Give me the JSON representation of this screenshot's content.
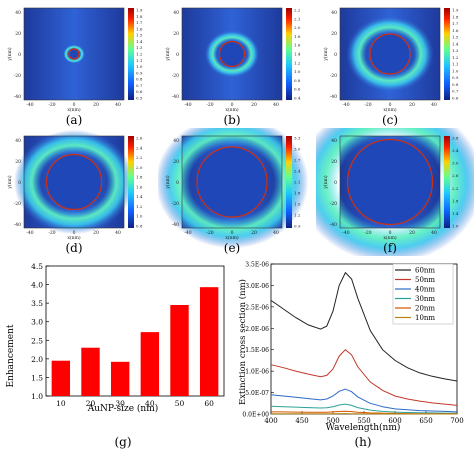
{
  "chart_data": [
    {
      "type": "heatmap",
      "panel": "(a)",
      "size_nm": 10,
      "xlabel": "x(nm)",
      "ylabel": "y(nm)",
      "xticks": [
        "-40",
        "-20",
        "0",
        "20",
        "40"
      ],
      "yticks": [
        "40",
        "20",
        "0",
        "-20",
        "-40"
      ],
      "colorbar": [
        "1.9",
        "1.8",
        "1.7",
        "1.6",
        "1.5",
        "1.4",
        "1.3",
        "1.2",
        "1.1",
        "1.0",
        "0.9",
        "0.8",
        "0.7",
        "0.6",
        "0.5"
      ]
    },
    {
      "type": "heatmap",
      "panel": "(b)",
      "size_nm": 20,
      "xlabel": "x(nm)",
      "ylabel": "y(nm)",
      "xticks": [
        "-40",
        "-20",
        "0",
        "20",
        "40"
      ],
      "yticks": [
        "40",
        "20",
        "0",
        "-20",
        "-40"
      ],
      "colorbar": [
        "2.2",
        "2.1",
        "2.0",
        "1.8",
        "1.6",
        "1.4",
        "1.2",
        "1.0",
        "0.8",
        "0.6",
        "0.4"
      ]
    },
    {
      "type": "heatmap",
      "panel": "(c)",
      "size_nm": 30,
      "xlabel": "x(nm)",
      "ylabel": "y(nm)",
      "xticks": [
        "-40",
        "-20",
        "0",
        "20",
        "40"
      ],
      "yticks": [
        "40",
        "20",
        "0",
        "-20",
        "-40"
      ],
      "colorbar": [
        "1.9",
        "1.8",
        "1.7",
        "1.6",
        "1.5",
        "1.4",
        "1.3",
        "1.2",
        "1.1",
        "1.0",
        "0.9",
        "0.8",
        "0.7",
        "0.6"
      ]
    },
    {
      "type": "heatmap",
      "panel": "(d)",
      "size_nm": 40,
      "xlabel": "x(nm)",
      "ylabel": "y(nm)",
      "xticks": [
        "-40",
        "-20",
        "0",
        "20",
        "40"
      ],
      "yticks": [
        "40",
        "20",
        "0",
        "-20",
        "-40"
      ],
      "colorbar": [
        "2.6",
        "2.4",
        "2.2",
        "2.0",
        "1.8",
        "1.6",
        "1.4",
        "1.2",
        "1.0",
        "0.8"
      ]
    },
    {
      "type": "heatmap",
      "panel": "(e)",
      "size_nm": 50,
      "xlabel": "x(nm)",
      "ylabel": "y(nm)",
      "xticks": [
        "-40",
        "-20",
        "0",
        "20",
        "40"
      ],
      "yticks": [
        "40",
        "20",
        "0",
        "-20",
        "-40"
      ],
      "colorbar": [
        "3.3",
        "3.0",
        "2.7",
        "2.4",
        "2.1",
        "1.8",
        "1.5",
        "1.2",
        "0.9"
      ]
    },
    {
      "type": "heatmap",
      "panel": "(f)",
      "size_nm": 60,
      "xlabel": "x(nm)",
      "ylabel": "y(nm)",
      "xticks": [
        "-40",
        "-20",
        "0",
        "20",
        "40"
      ],
      "yticks": [
        "40",
        "20",
        "0",
        "-20",
        "-40"
      ],
      "colorbar": [
        "3.8",
        "3.4",
        "3.0",
        "2.6",
        "2.2",
        "1.8",
        "1.4",
        "1.0"
      ]
    },
    {
      "type": "bar",
      "panel": "(g)",
      "categories": [
        "10",
        "20",
        "30",
        "40",
        "50",
        "60"
      ],
      "values": [
        1.95,
        2.3,
        1.92,
        2.72,
        3.45,
        3.93
      ],
      "xlabel": "AuNP-size (nm)",
      "ylabel": "Enhancement",
      "ylim": [
        1.0,
        4.5
      ],
      "yticks": [
        "1.0",
        "1.5",
        "2.0",
        "2.5",
        "3.0",
        "3.5",
        "4.0",
        "4.5"
      ],
      "color": "#ff0000"
    },
    {
      "type": "line",
      "panel": "(h)",
      "xlabel": "Wavelength(nm)",
      "ylabel": "Extinction cross section (nm)",
      "xlim": [
        400,
        700
      ],
      "ylim": [
        0,
        3.5e-06
      ],
      "xticks": [
        "400",
        "450",
        "500",
        "550",
        "600",
        "650",
        "700"
      ],
      "yticks": [
        "0.0E+00",
        "5.0E-07",
        "1.0E-06",
        "1.5E-06",
        "2.0E-06",
        "2.5E-06",
        "3.0E-06",
        "3.5E-06"
      ],
      "legend_position": "top-right",
      "x": [
        400,
        420,
        440,
        460,
        480,
        490,
        500,
        510,
        520,
        530,
        540,
        560,
        580,
        600,
        620,
        640,
        660,
        680,
        700
      ],
      "series": [
        {
          "name": "60nm",
          "color": "#222222",
          "values": [
            2.65e-06,
            2.45e-06,
            2.25e-06,
            2.08e-06,
            1.98e-06,
            2.05e-06,
            2.4e-06,
            3e-06,
            3.3e-06,
            3.15e-06,
            2.7e-06,
            1.95e-06,
            1.5e-06,
            1.25e-06,
            1.08e-06,
            9.6e-07,
            8.8e-07,
            8.2e-07,
            7.7e-07
          ]
        },
        {
          "name": "50nm",
          "color": "#c0392b",
          "values": [
            1.15e-06,
            1.08e-06,
            1e-06,
            9.3e-07,
            8.7e-07,
            9e-07,
            1.05e-06,
            1.35e-06,
            1.5e-06,
            1.38e-06,
            1.1e-06,
            7.5e-07,
            5.5e-07,
            4.2e-07,
            3.5e-07,
            3e-07,
            2.6e-07,
            2.3e-07,
            2e-07
          ]
        },
        {
          "name": "40nm",
          "color": "#2e6bc7",
          "values": [
            4.5e-07,
            4.2e-07,
            3.9e-07,
            3.6e-07,
            3.3e-07,
            3.5e-07,
            4.2e-07,
            5.3e-07,
            5.8e-07,
            5.2e-07,
            4e-07,
            2.5e-07,
            1.7e-07,
            1.2e-07,
            1e-07,
            8e-08,
            7e-08,
            6e-08,
            5e-08
          ]
        },
        {
          "name": "30nm",
          "color": "#2aa198",
          "values": [
            1.8e-07,
            1.7e-07,
            1.6e-07,
            1.5e-07,
            1.4e-07,
            1.45e-07,
            1.7e-07,
            2.1e-07,
            2.3e-07,
            2e-07,
            1.5e-07,
            9e-08,
            6e-08,
            4.5e-08,
            3.5e-08,
            3e-08,
            2.5e-08,
            2e-08,
            1.8e-08
          ]
        },
        {
          "name": "20nm",
          "color": "#d35400",
          "values": [
            5e-08,
            4.8e-08,
            4.5e-08,
            4.2e-08,
            4e-08,
            4.1e-08,
            4.8e-08,
            5.8e-08,
            6.2e-08,
            5.5e-08,
            4.2e-08,
            2.6e-08,
            1.8e-08,
            1.3e-08,
            1e-08,
            8e-09,
            7e-09,
            6e-09,
            5e-09
          ]
        },
        {
          "name": "10nm",
          "color": "#b8860b",
          "values": [
            8e-09,
            7.5e-09,
            7e-09,
            6.6e-09,
            6.2e-09,
            6.4e-09,
            7.2e-09,
            8.5e-09,
            9e-09,
            8e-09,
            6.2e-09,
            4e-09,
            2.8e-09,
            2e-09,
            1.6e-09,
            1.3e-09,
            1.1e-09,
            1e-09,
            9e-10
          ]
        }
      ]
    }
  ]
}
